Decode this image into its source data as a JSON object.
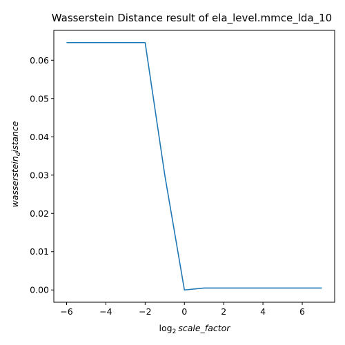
{
  "chart_data": {
    "type": "line",
    "title": "Wasserstein Distance result of ela_level.mmce_lda_10",
    "xlabel": {
      "prefix": "log",
      "subscript": "2",
      "main": "scale_factor"
    },
    "ylabel": {
      "main": "wasserstein",
      "subscript": "d",
      "rest": "istance"
    },
    "xlim": [
      -6.65,
      7.65
    ],
    "ylim": [
      -0.0032,
      0.0678
    ],
    "xticks": [
      -6,
      -4,
      -2,
      0,
      2,
      4,
      6
    ],
    "xtick_labels": [
      "−6",
      "−4",
      "−2",
      "0",
      "2",
      "4",
      "6"
    ],
    "yticks": [
      0.0,
      0.01,
      0.02,
      0.03,
      0.04,
      0.05,
      0.06
    ],
    "ytick_labels": [
      "0.00",
      "0.01",
      "0.02",
      "0.03",
      "0.04",
      "0.05",
      "0.06"
    ],
    "grid": false,
    "series": [
      {
        "color": "#1f77b4",
        "x": [
          -6,
          -5,
          -4,
          -3,
          -2,
          -1,
          0,
          1,
          2,
          3,
          4,
          5,
          6,
          7
        ],
        "y": [
          0.0646,
          0.0646,
          0.0646,
          0.0646,
          0.0646,
          0.03,
          0.0,
          0.0005,
          0.0005,
          0.0005,
          0.0005,
          0.0005,
          0.0005,
          0.0005
        ]
      }
    ]
  }
}
